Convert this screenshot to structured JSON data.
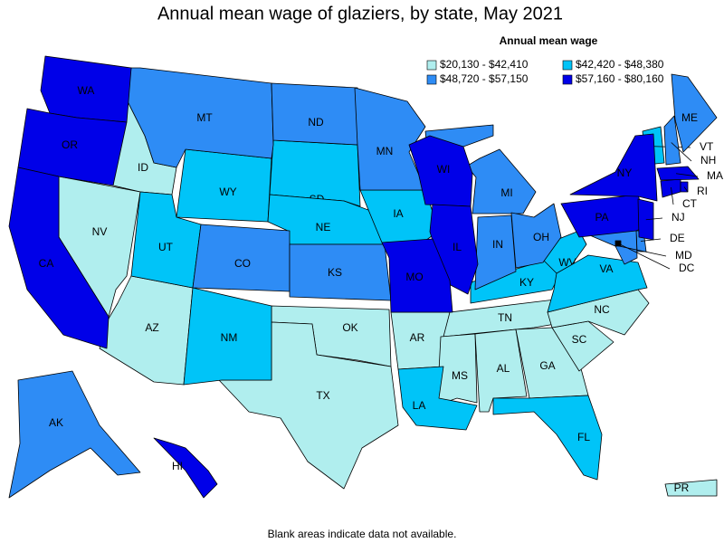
{
  "title": "Annual mean wage of glaziers, by state, May 2021",
  "legend": {
    "title": "Annual mean wage",
    "entries": [
      {
        "label": "$20,130 - $42,410",
        "color": "#b0eeee",
        "states": [
          "ID",
          "NV",
          "AZ",
          "OK",
          "TX",
          "AR",
          "TN",
          "MS",
          "AL",
          "GA",
          "SC",
          "NC",
          "PR"
        ]
      },
      {
        "label": "$42,420 - $48,380",
        "color": "#00c4f8",
        "states": [
          "WY",
          "UT",
          "NM",
          "SD",
          "NE",
          "IA",
          "LA",
          "FL",
          "KY",
          "WV",
          "VA",
          "VT"
        ]
      },
      {
        "label": "$48,720 - $57,150",
        "color": "#2e8cf5",
        "states": [
          "MT",
          "CO",
          "ND",
          "KS",
          "MN",
          "MI",
          "IN",
          "OH",
          "NH",
          "ME",
          "DE",
          "MD",
          "AK"
        ]
      },
      {
        "label": "$57,160 - $80,160",
        "color": "#0000e8",
        "states": [
          "WA",
          "OR",
          "CA",
          "WI",
          "IL",
          "MO",
          "PA",
          "NY",
          "NJ",
          "CT",
          "MA",
          "RI",
          "HI",
          "DC"
        ]
      }
    ]
  },
  "footnote": "Blank areas indicate data not available."
}
